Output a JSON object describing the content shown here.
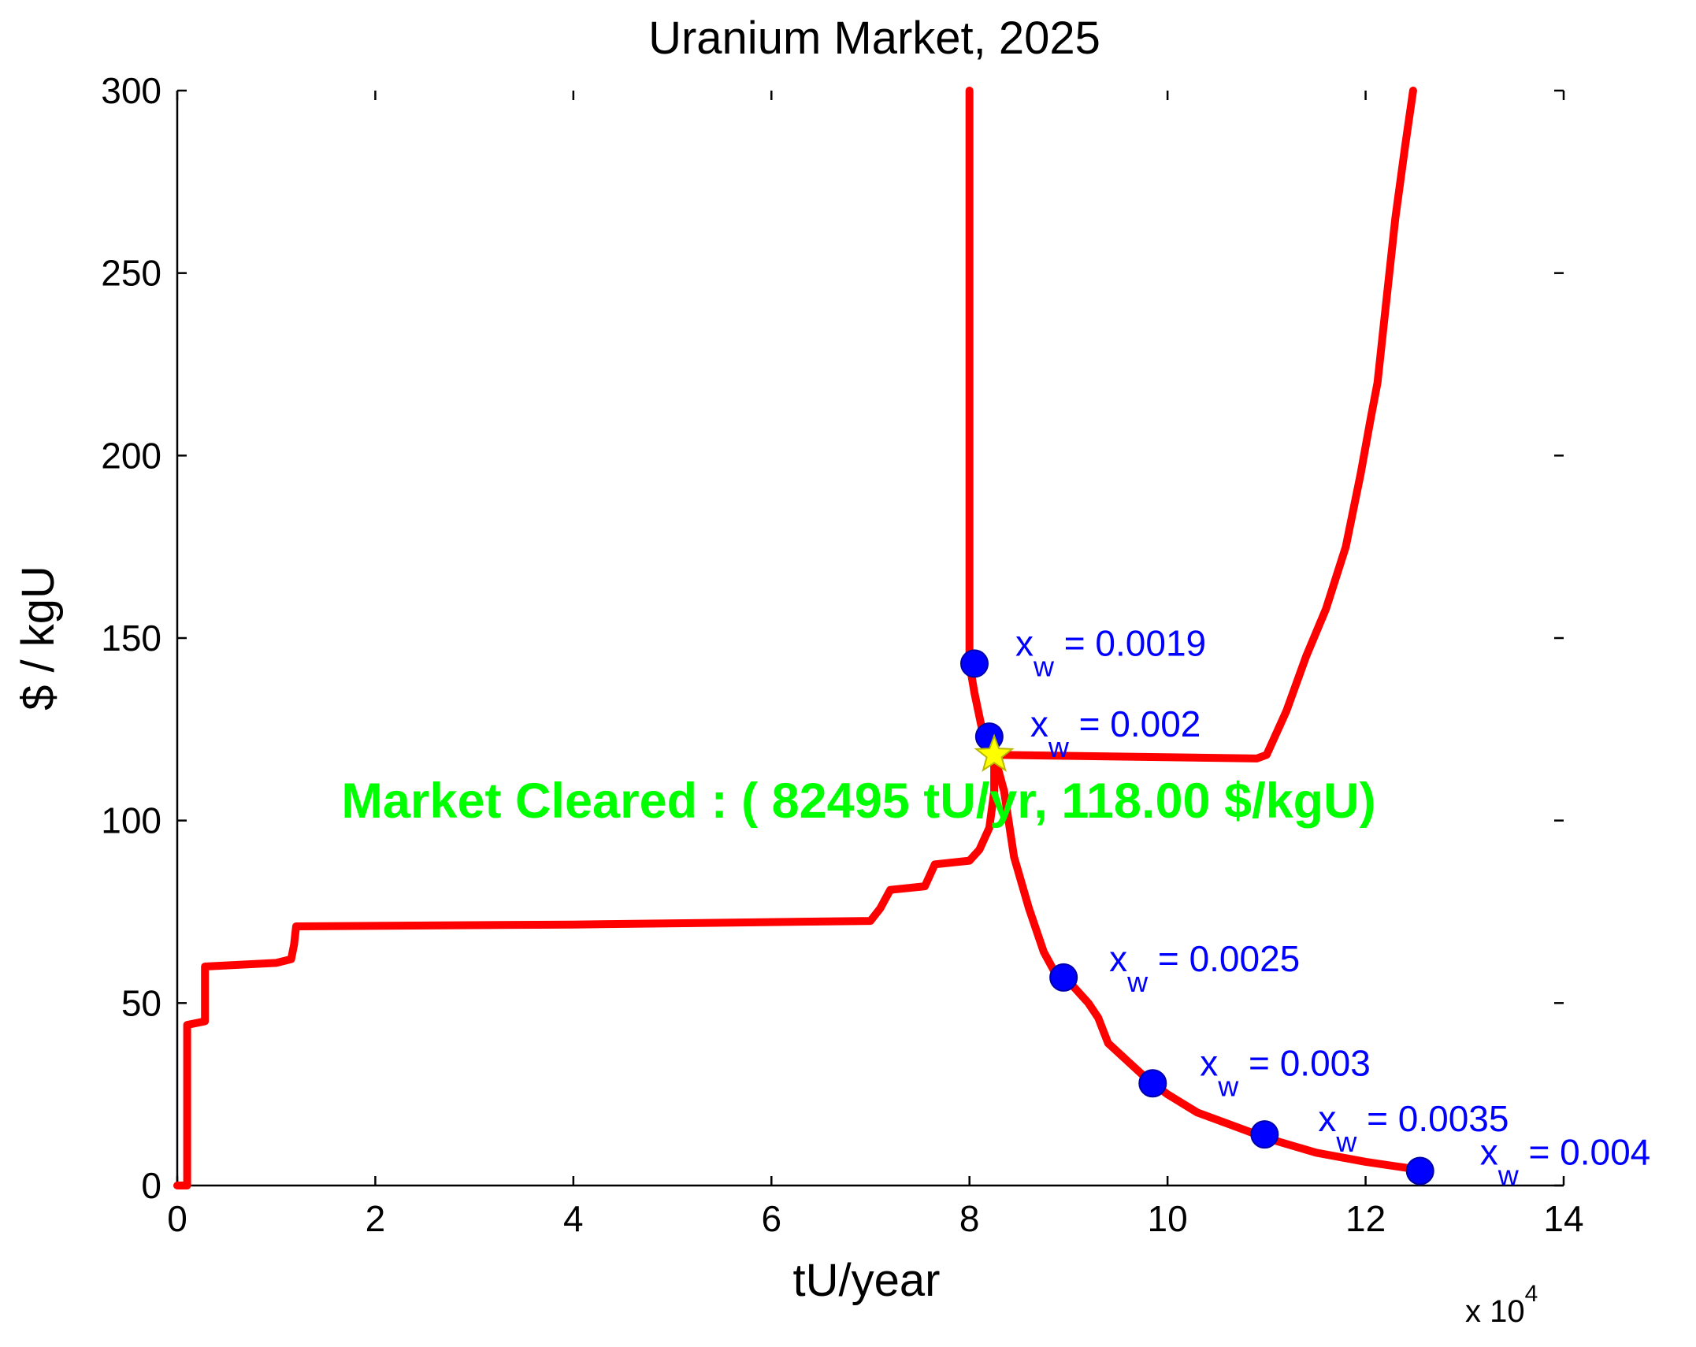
{
  "chart_data": {
    "type": "line",
    "title": "Uranium Market, 2025",
    "xlabel": "tU/year",
    "ylabel": "$ / kgU",
    "x_multiplier_label": "x 10",
    "x_multiplier_exp": "4",
    "xlim": [
      0,
      14
    ],
    "ylim": [
      0,
      300
    ],
    "x_ticks": [
      "0",
      "2",
      "4",
      "6",
      "8",
      "10",
      "12",
      "14"
    ],
    "y_ticks": [
      "0",
      "50",
      "100",
      "150",
      "200",
      "250",
      "300"
    ],
    "grid": false,
    "series": [
      {
        "role": "supply",
        "color": "#ff0000",
        "points": [
          [
            0.0,
            0
          ],
          [
            0.1,
            0
          ],
          [
            0.1,
            44
          ],
          [
            0.28,
            45
          ],
          [
            0.28,
            60
          ],
          [
            1.0,
            61
          ],
          [
            1.15,
            62
          ],
          [
            1.18,
            66
          ],
          [
            1.2,
            71
          ],
          [
            4.0,
            71.5
          ],
          [
            7.0,
            72.5
          ],
          [
            7.1,
            76
          ],
          [
            7.2,
            81
          ],
          [
            7.55,
            82
          ],
          [
            7.65,
            88
          ],
          [
            8.0,
            89
          ],
          [
            8.1,
            92
          ],
          [
            8.2,
            98
          ],
          [
            8.25,
            108
          ],
          [
            8.25,
            118
          ],
          [
            10.9,
            117
          ],
          [
            11.0,
            118
          ],
          [
            11.2,
            130
          ],
          [
            11.4,
            145
          ],
          [
            11.6,
            158
          ],
          [
            11.8,
            175
          ],
          [
            11.95,
            195
          ],
          [
            12.05,
            210
          ],
          [
            12.12,
            220
          ],
          [
            12.2,
            240
          ],
          [
            12.3,
            265
          ],
          [
            12.4,
            285
          ],
          [
            12.48,
            300
          ]
        ]
      },
      {
        "role": "demand",
        "color": "#ff0000",
        "points": [
          [
            8.0,
            300
          ],
          [
            8.0,
            143
          ],
          [
            8.05,
            135
          ],
          [
            8.15,
            122
          ],
          [
            8.25,
            118
          ],
          [
            8.35,
            108
          ],
          [
            8.45,
            90
          ],
          [
            8.6,
            76
          ],
          [
            8.75,
            64
          ],
          [
            8.85,
            59
          ],
          [
            9.0,
            56
          ],
          [
            9.2,
            50
          ],
          [
            9.3,
            46
          ],
          [
            9.4,
            39
          ],
          [
            9.6,
            34
          ],
          [
            9.8,
            29
          ],
          [
            10.0,
            25
          ],
          [
            10.3,
            20
          ],
          [
            10.6,
            17
          ],
          [
            11.0,
            13
          ],
          [
            11.5,
            9
          ],
          [
            12.0,
            6.5
          ],
          [
            12.5,
            4.5
          ]
        ]
      }
    ],
    "markers": [
      {
        "x": 8.05,
        "y": 143,
        "label": "x",
        "sub": "w",
        "value": " = 0.0019"
      },
      {
        "x": 8.2,
        "y": 123,
        "label": "x",
        "sub": "w",
        "value": " = 0.002"
      },
      {
        "x": 8.95,
        "y": 57,
        "label": "x",
        "sub": "w",
        "value": " = 0.0025"
      },
      {
        "x": 9.85,
        "y": 28,
        "label": "x",
        "sub": "w",
        "value": " = 0.003"
      },
      {
        "x": 10.98,
        "y": 14,
        "label": "x",
        "sub": "w",
        "value": " = 0.0035"
      },
      {
        "x": 12.55,
        "y": 4,
        "label": "x",
        "sub": "w",
        "value": " = 0.004"
      }
    ],
    "equilibrium": {
      "x": 8.2495,
      "y": 118.0,
      "label": "Market Cleared : ( 82495 tU/yr, 118.00 $/kgU)",
      "marker_color": "#ffff00"
    },
    "line_color": "#ff0000",
    "marker_color": "#0000ff",
    "label_color": "#0000ff",
    "cleared_color": "#00ff00"
  }
}
